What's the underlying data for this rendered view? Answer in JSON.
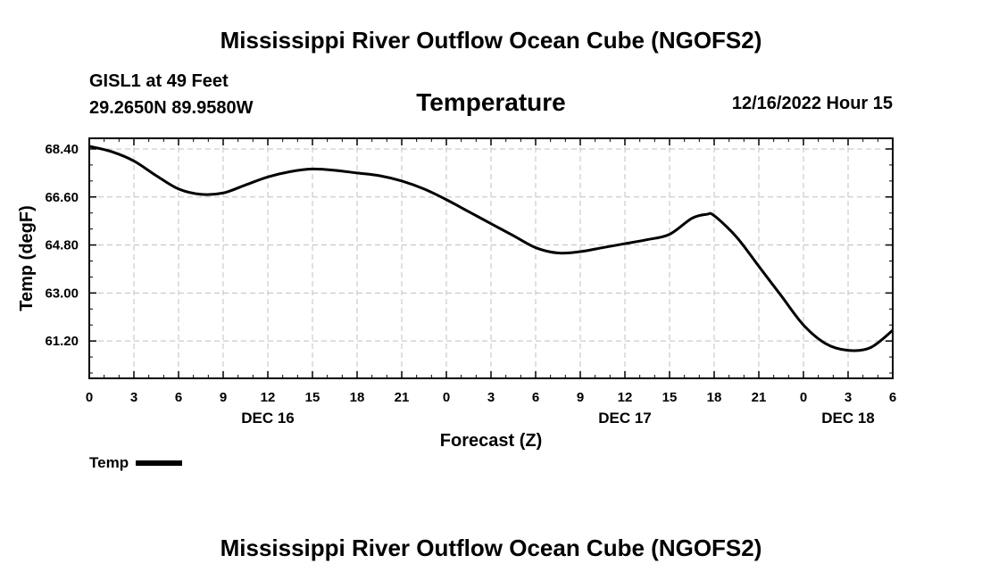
{
  "header": {
    "title": "Mississippi River Outflow Ocean Cube (NGOFS2)",
    "station_name": "GISL1 at 49 Feet",
    "coordinates": "29.2650N  89.9580W",
    "subtitle": "Temperature",
    "datetime": "12/16/2022 Hour 15"
  },
  "footer": {
    "title": "Mississippi River Outflow Ocean Cube (NGOFS2)"
  },
  "legend": {
    "label": "Temp",
    "color": "#000000"
  },
  "chart_data": {
    "type": "line",
    "title": "Temperature",
    "xlabel": "Forecast (Z)",
    "ylabel": "Temp (degF)",
    "xlim": [
      0,
      54
    ],
    "ylim": [
      59.8,
      68.8
    ],
    "x_ticks": [
      0,
      3,
      6,
      9,
      12,
      15,
      18,
      21,
      24,
      27,
      30,
      33,
      36,
      39,
      42,
      45,
      48,
      51,
      54
    ],
    "x_tick_labels": [
      "0",
      "3",
      "6",
      "9",
      "12",
      "15",
      "18",
      "21",
      "0",
      "3",
      "6",
      "9",
      "12",
      "15",
      "18",
      "21",
      "0",
      "3",
      "6"
    ],
    "y_ticks": [
      61.2,
      63.0,
      64.8,
      66.6,
      68.4
    ],
    "y_tick_labels": [
      "61.20",
      "63.00",
      "64.80",
      "66.60",
      "68.40"
    ],
    "day_labels": [
      {
        "x": 12,
        "label": "DEC 16"
      },
      {
        "x": 36,
        "label": "DEC 17"
      },
      {
        "x": 51,
        "label": "DEC 18"
      }
    ],
    "grid": true,
    "series": [
      {
        "name": "Temp",
        "color": "#000000",
        "x": [
          0,
          1.5,
          3,
          4.5,
          6,
          7.5,
          9,
          10.5,
          12,
          13.5,
          15,
          16.5,
          18,
          19.5,
          21,
          22.5,
          24,
          25.5,
          27,
          28.5,
          30,
          31.5,
          33,
          34.5,
          36,
          37.5,
          39,
          40.5,
          41.5,
          42,
          43.5,
          45,
          46.5,
          48,
          49.5,
          51,
          52.5,
          54
        ],
        "values": [
          68.5,
          68.3,
          67.95,
          67.4,
          66.9,
          66.7,
          66.75,
          67.05,
          67.35,
          67.55,
          67.65,
          67.6,
          67.5,
          67.4,
          67.2,
          66.9,
          66.5,
          66.05,
          65.6,
          65.15,
          64.7,
          64.5,
          64.55,
          64.7,
          64.85,
          65.0,
          65.2,
          65.8,
          65.95,
          65.9,
          65.1,
          64.0,
          62.9,
          61.8,
          61.1,
          60.85,
          60.95,
          61.6
        ]
      }
    ]
  }
}
